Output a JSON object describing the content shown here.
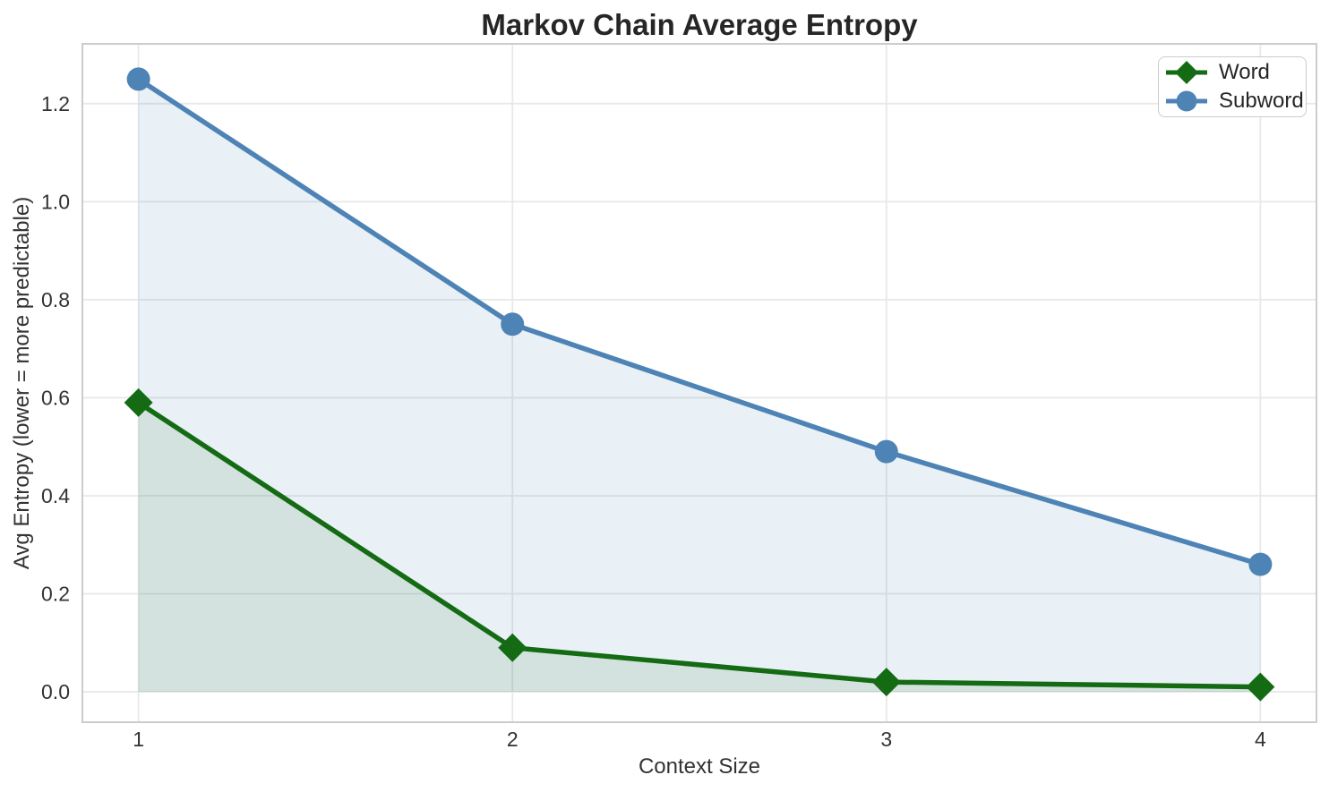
{
  "chart_data": {
    "type": "line",
    "title": "Markov Chain Average Entropy",
    "xlabel": "Context Size",
    "ylabel": "Avg Entropy (lower = more predictable)",
    "x": [
      1,
      2,
      3,
      4
    ],
    "series": [
      {
        "name": "Word",
        "marker": "diamond",
        "color": "#146b14",
        "fill_color": "rgba(20,107,20,0.10)",
        "values": [
          0.59,
          0.09,
          0.02,
          0.01
        ]
      },
      {
        "name": "Subword",
        "marker": "circle",
        "color": "#4e83b5",
        "fill_color": "rgba(78,131,181,0.12)",
        "values": [
          1.25,
          0.75,
          0.49,
          0.26
        ]
      }
    ],
    "area_fill_to_zero": true,
    "xticks": [
      1,
      2,
      3,
      4
    ],
    "xtick_labels": [
      "1",
      "2",
      "3",
      "4"
    ],
    "yticks": [
      0.0,
      0.2,
      0.4,
      0.6,
      0.8,
      1.0,
      1.2
    ],
    "ytick_labels": [
      "0.0",
      "0.2",
      "0.4",
      "0.6",
      "0.8",
      "1.0",
      "1.2"
    ],
    "xlim": [
      0.85,
      4.15
    ],
    "ylim": [
      -0.062,
      1.322
    ],
    "grid": true,
    "legend_position": "upper right",
    "colors": {
      "grid": "#e8e8e8",
      "spine": "#cccccc",
      "tick_text": "#333333",
      "title_text": "#262626",
      "background": "#ffffff"
    }
  }
}
